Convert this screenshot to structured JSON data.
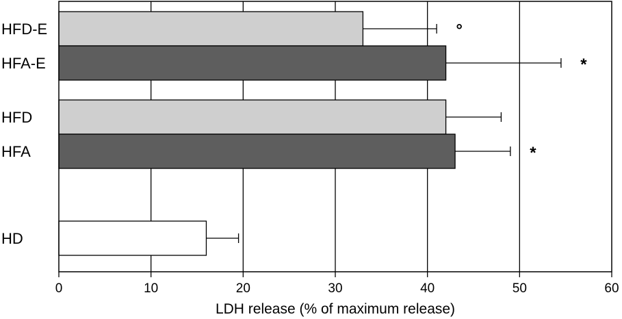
{
  "chart_data": {
    "type": "bar",
    "orientation": "horizontal",
    "categories": [
      "HFD-E",
      "HFA-E",
      "HFD",
      "HFA",
      "HD"
    ],
    "values": [
      33,
      42,
      42,
      43,
      16
    ],
    "errors": [
      8,
      12.5,
      6,
      6,
      3.5
    ],
    "annotations": [
      "°",
      "*",
      "",
      "*",
      ""
    ],
    "bar_colors": [
      "#cfcfcf",
      "#5e5e5e",
      "#cfcfcf",
      "#5e5e5e",
      "#ffffff"
    ],
    "xlabel": "LDH release (% of maximum release)",
    "ylabel": "",
    "title": "",
    "xlim": [
      0,
      60
    ],
    "xticks": [
      0,
      10,
      20,
      30,
      40,
      50,
      60
    ],
    "grid": "vertical",
    "legend": "none"
  }
}
